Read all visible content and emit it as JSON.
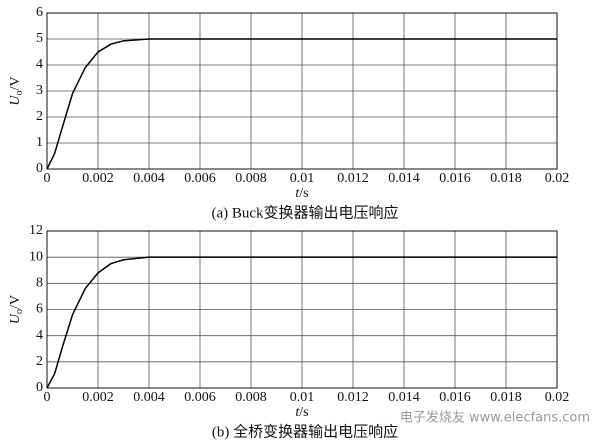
{
  "chart_data": [
    {
      "type": "line",
      "caption": "(a) Buck变换器输出电压响应",
      "xlabel": {
        "symbol": "t",
        "unit": "/s"
      },
      "ylabel": {
        "symbol": "U",
        "subscript": "o",
        "unit": "/V"
      },
      "x": [
        0,
        0.0003,
        0.0006,
        0.001,
        0.0015,
        0.002,
        0.0025,
        0.003,
        0.004,
        0.005,
        0.02
      ],
      "series": [
        {
          "color": "#000000",
          "values": [
            0,
            0.6,
            1.6,
            2.9,
            3.9,
            4.5,
            4.8,
            4.93,
            5.0,
            5.0,
            5.0
          ]
        }
      ],
      "xlim": [
        0,
        0.02
      ],
      "ylim": [
        0,
        6
      ],
      "xticks": [
        0,
        0.002,
        0.004,
        0.006,
        0.008,
        0.01,
        0.012,
        0.014,
        0.016,
        0.018,
        0.02
      ],
      "yticks": [
        0,
        1,
        2,
        3,
        4,
        5,
        6
      ],
      "grid": true
    },
    {
      "type": "line",
      "caption": "(b) 全桥变换器输出电压响应",
      "xlabel": {
        "symbol": "t",
        "unit": "/s"
      },
      "ylabel": {
        "symbol": "U",
        "subscript": "o",
        "unit": "/V"
      },
      "x": [
        0,
        0.0003,
        0.0006,
        0.001,
        0.0015,
        0.002,
        0.0025,
        0.003,
        0.004,
        0.005,
        0.02
      ],
      "series": [
        {
          "color": "#000000",
          "values": [
            0,
            1.1,
            3.1,
            5.6,
            7.6,
            8.8,
            9.5,
            9.8,
            10,
            10,
            10
          ]
        }
      ],
      "xlim": [
        0,
        0.02
      ],
      "ylim": [
        0,
        12
      ],
      "xticks": [
        0,
        0.002,
        0.004,
        0.006,
        0.008,
        0.01,
        0.012,
        0.014,
        0.016,
        0.018,
        0.02
      ],
      "yticks": [
        0,
        2,
        4,
        6,
        8,
        10,
        12
      ],
      "grid": true
    }
  ],
  "watermark": "电子发烧友 www.elecfans.com"
}
